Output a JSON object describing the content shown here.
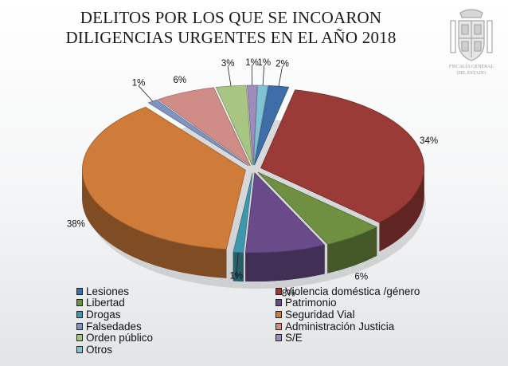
{
  "title": {
    "line1": "DELITOS POR LOS QUE SE INCOARON",
    "line2": "DILIGENCIAS URGENTES EN EL AÑO 2018"
  },
  "logo": {
    "text_line1": "FISCALÍA GENERAL",
    "text_line2": "DEL ESTADO"
  },
  "chart_data": {
    "type": "pie",
    "title": "DELITOS POR LOS QUE SE INCOARON DILIGENCIAS URGENTES EN EL AÑO 2018",
    "slices": [
      {
        "label": "Lesiones",
        "value": 2,
        "value_label": "2%",
        "color": "#3e6da8"
      },
      {
        "label": "Violencia doméstica /género",
        "value": 34,
        "value_label": "34%",
        "color": "#9b3b37"
      },
      {
        "label": "Libertad",
        "value": 6,
        "value_label": "6%",
        "color": "#6f9040"
      },
      {
        "label": "Patrimonio",
        "value": 8,
        "value_label": "8%",
        "color": "#6a4b8a"
      },
      {
        "label": "Drogas",
        "value": 1,
        "value_label": "1%",
        "color": "#3f97ad"
      },
      {
        "label": "Seguridad Vial",
        "value": 38,
        "value_label": "38%",
        "color": "#cf7b3a"
      },
      {
        "label": "Falsedades",
        "value": 1,
        "value_label": "1%",
        "color": "#7f94c2"
      },
      {
        "label": "Administración Justicia",
        "value": 6,
        "value_label": "6%",
        "color": "#d08d88"
      },
      {
        "label": "Orden público",
        "value": 3,
        "value_label": "3%",
        "color": "#a8c583"
      },
      {
        "label": "S/E",
        "value": 1,
        "value_label": "1%",
        "color": "#9f8cbc"
      },
      {
        "label": "Otros",
        "value": 1,
        "value_label": "1%",
        "color": "#7fc3d5"
      }
    ],
    "legend_position": "bottom"
  }
}
